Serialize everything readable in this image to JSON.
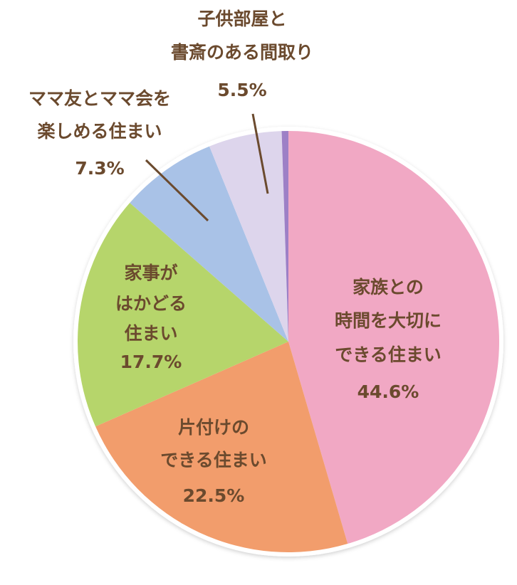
{
  "chart_data": {
    "type": "pie",
    "categories": [
      [
        "家族との",
        "時間を大切に",
        "できる住まい"
      ],
      [
        "片付けの",
        "できる住まい"
      ],
      [
        "家事が",
        "はかどる",
        "住まい"
      ],
      [
        "ママ友とママ会を",
        "楽しめる住まい"
      ],
      [
        "子供部屋と",
        "書斎のある間取り"
      ],
      null
    ],
    "values": [
      44.6,
      22.5,
      17.7,
      7.3,
      5.5,
      0.5
    ],
    "value_labels": [
      "44.6%",
      "22.5%",
      "17.7%",
      "7.3%",
      "5.5%",
      null
    ],
    "colors": [
      "#f1a8c4",
      "#f29d6c",
      "#b6d56b",
      "#a9c2e7",
      "#ddd5ec",
      "#9d80c6"
    ]
  }
}
